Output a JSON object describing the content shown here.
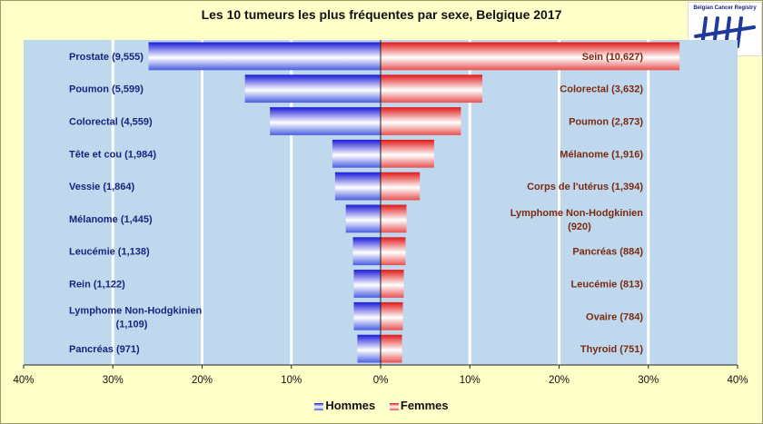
{
  "chart_data": {
    "type": "bar",
    "orientation": "horizontal-pyramid",
    "title": "Les 10 tumeurs les plus fréquentes par sexe, Belgique 2017",
    "xlim": [
      -40,
      40
    ],
    "x_ticks": [
      "40%",
      "30%",
      "20%",
      "10%",
      "0%",
      "10%",
      "20%",
      "30%",
      "40%"
    ],
    "grid": true,
    "legend_position": "bottom",
    "series": [
      {
        "name": "Hommes",
        "color": "#2b2bd0",
        "labels": [
          "Prostate  (9,555)",
          "Poumon  (5,599)",
          "Colorectal  (4,559)",
          "Tête et cou (1,984)",
          "Vessie (1,864)",
          "Mélanome  (1,445)",
          "Leucémie  (1,138)",
          "Rein  (1,122)",
          "Lymphome Non-Hodgkinien|(1,109)",
          "Pancréas  (971)"
        ],
        "counts": [
          9555,
          5599,
          4559,
          1984,
          1864,
          1445,
          1138,
          1122,
          1109,
          971
        ],
        "values": [
          26.0,
          15.2,
          12.4,
          5.4,
          5.1,
          3.9,
          3.1,
          3.0,
          3.0,
          2.6
        ]
      },
      {
        "name": "Femmes",
        "color": "#e02020",
        "labels": [
          "Sein (10,627)",
          "Colorectal (3,632)",
          "Poumon  (2,873)",
          "Mélanome  (1,916)",
          "Corps de l'utérus  (1,394)",
          "Lymphome Non-Hodgkinien|(920)",
          "Pancréas  (884)",
          "Leucémie  (813)",
          "Ovaire  (784)",
          "Thyroid  (751)"
        ],
        "counts": [
          10627,
          3632,
          2873,
          1916,
          1394,
          920,
          884,
          813,
          784,
          751
        ],
        "values": [
          33.5,
          11.4,
          9.0,
          6.0,
          4.4,
          2.9,
          2.8,
          2.6,
          2.5,
          2.4
        ]
      }
    ]
  },
  "logo": {
    "text": "Belgian Cancer Registry",
    "icon": "tally-marks-icon"
  }
}
